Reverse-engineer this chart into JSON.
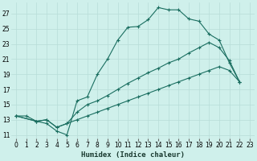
{
  "xlabel": "Humidex (Indice chaleur)",
  "background_color": "#cff0eb",
  "grid_color": "#b8ddd8",
  "line_color": "#1a6e60",
  "xlim": [
    -0.5,
    23.5
  ],
  "ylim": [
    10.5,
    28.5
  ],
  "yticks": [
    11,
    13,
    15,
    17,
    19,
    21,
    23,
    25,
    27
  ],
  "xticks": [
    0,
    1,
    2,
    3,
    4,
    5,
    6,
    7,
    8,
    9,
    10,
    11,
    12,
    13,
    14,
    15,
    16,
    17,
    18,
    19,
    20,
    21,
    22,
    23
  ],
  "curve1_x": [
    0,
    1,
    2,
    3,
    4,
    5,
    6,
    7,
    8,
    9,
    10,
    11,
    12,
    13,
    14,
    15,
    16,
    17,
    18,
    19,
    20,
    21,
    22
  ],
  "curve1_y": [
    13.5,
    13.5,
    12.8,
    12.5,
    11.5,
    11.0,
    15.5,
    16.0,
    19.0,
    21.0,
    23.5,
    25.2,
    25.3,
    26.2,
    27.8,
    27.5,
    27.5,
    26.3,
    26.0,
    24.3,
    23.5,
    20.5,
    18.0
  ],
  "curve2_x": [
    0,
    2,
    3,
    4,
    5,
    6,
    7,
    8,
    9,
    10,
    11,
    12,
    13,
    14,
    15,
    16,
    17,
    18,
    19,
    20,
    21,
    22
  ],
  "curve2_y": [
    13.5,
    12.8,
    13.0,
    12.0,
    12.5,
    14.0,
    15.0,
    15.5,
    16.2,
    17.0,
    17.8,
    18.5,
    19.2,
    19.8,
    20.5,
    21.0,
    21.8,
    22.5,
    23.2,
    22.5,
    20.8,
    18.0
  ],
  "curve3_x": [
    0,
    2,
    3,
    4,
    5,
    6,
    7,
    8,
    9,
    10,
    11,
    12,
    13,
    14,
    15,
    16,
    17,
    18,
    19,
    20,
    21,
    22
  ],
  "curve3_y": [
    13.5,
    12.8,
    13.0,
    12.0,
    12.5,
    13.0,
    13.5,
    14.0,
    14.5,
    15.0,
    15.5,
    16.0,
    16.5,
    17.0,
    17.5,
    18.0,
    18.5,
    19.0,
    19.5,
    20.0,
    19.5,
    18.0
  ]
}
